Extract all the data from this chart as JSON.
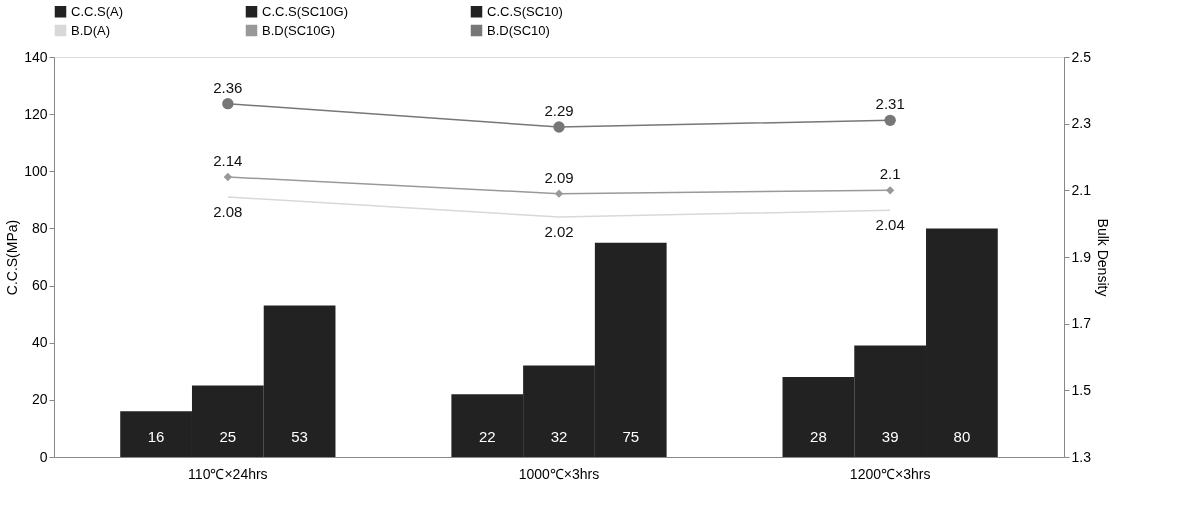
{
  "chart_data": {
    "type": "bar",
    "categories": [
      "110℃×24hrs",
      "1000℃×3hrs",
      "1200℃×3hrs"
    ],
    "ylabel": "C.C.S(MPa)",
    "y2label": "Bulk Density",
    "ylim": [
      0,
      140
    ],
    "yticks": [
      0,
      20,
      40,
      60,
      80,
      100,
      120,
      140
    ],
    "y2lim": [
      1.3,
      2.5
    ],
    "y2ticks": [
      1.3,
      1.5,
      1.7,
      1.9,
      2.1,
      2.3,
      2.5
    ],
    "grid": false,
    "legend": "top",
    "data_labels": true,
    "series": [
      {
        "name": "C.C.S(A)",
        "color": "#222222",
        "values": [
          16,
          22,
          28
        ]
      },
      {
        "name": "C.C.S(SC10G)",
        "color": "#222222",
        "values": [
          25,
          32,
          39
        ]
      },
      {
        "name": "C.C.S(SC10)",
        "color": "#222222",
        "values": [
          53,
          75,
          80
        ]
      },
      {
        "name": "B.D(A)",
        "type": "line",
        "axis": "y2",
        "color": "#d8d8d8",
        "marker": "none",
        "values": [
          2.08,
          2.02,
          2.04
        ]
      },
      {
        "name": "B.D(SC10G)",
        "type": "line",
        "axis": "y2",
        "color": "#999999",
        "marker": "diamond",
        "values": [
          2.14,
          2.09,
          2.1
        ]
      },
      {
        "name": "B.D(SC10)",
        "type": "line",
        "axis": "y2",
        "color": "#777777",
        "marker": "circle",
        "values": [
          2.36,
          2.29,
          2.31
        ]
      }
    ]
  }
}
